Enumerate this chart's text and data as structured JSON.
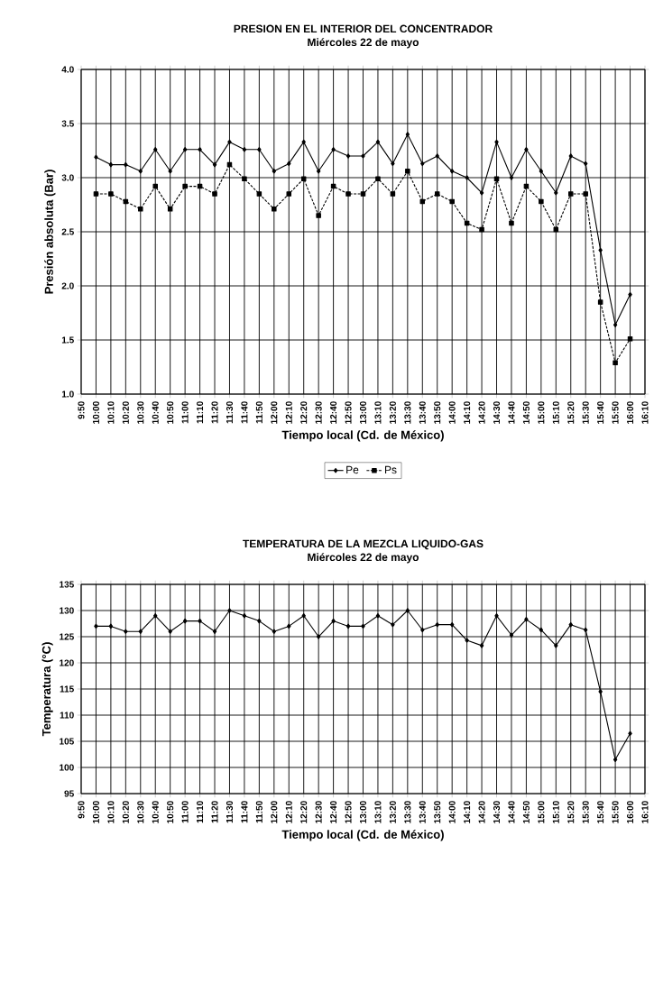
{
  "chart_data": [
    {
      "type": "line",
      "title": "PRESION EN EL INTERIOR DEL CONCENTRADOR",
      "subtitle": "Miércoles 22 de mayo",
      "xlabel": "Tiempo local (Cd. de México)",
      "ylabel": "Presión absoluta (Bar)",
      "categories": [
        "9:50",
        "10:00",
        "10:10",
        "10:20",
        "10:30",
        "10:40",
        "10:50",
        "11:00",
        "11:10",
        "11:20",
        "11:30",
        "11:40",
        "11:50",
        "12:00",
        "12:10",
        "12:20",
        "12:30",
        "12:40",
        "12:50",
        "13:00",
        "13:10",
        "13:20",
        "13:30",
        "13:40",
        "13:50",
        "14:00",
        "14:10",
        "14:20",
        "14:30",
        "14:40",
        "14:50",
        "15:00",
        "15:10",
        "15:20",
        "15:30",
        "15:40",
        "15:50",
        "16:00",
        "16:10"
      ],
      "series": [
        {
          "name": "Pe",
          "color": "#000000",
          "marker": "diamond",
          "line_style": "solid",
          "values": [
            null,
            3.19,
            3.12,
            3.12,
            3.06,
            3.26,
            3.06,
            3.26,
            3.26,
            3.12,
            3.33,
            3.26,
            3.26,
            3.06,
            3.13,
            3.33,
            3.06,
            3.26,
            3.2,
            3.2,
            3.33,
            3.13,
            3.4,
            3.13,
            3.2,
            3.06,
            3.0,
            2.86,
            3.33,
            3.0,
            3.26,
            3.06,
            2.86,
            3.2,
            3.13,
            2.33,
            1.64,
            1.92,
            null
          ]
        },
        {
          "name": "Ps",
          "color": "#000000",
          "marker": "square",
          "line_style": "dashed",
          "values": [
            null,
            2.85,
            2.85,
            2.78,
            2.71,
            2.92,
            2.71,
            2.92,
            2.92,
            2.85,
            3.12,
            2.99,
            2.85,
            2.71,
            2.85,
            2.99,
            2.65,
            2.92,
            2.85,
            2.85,
            2.99,
            2.85,
            3.06,
            2.78,
            2.85,
            2.78,
            2.58,
            2.52,
            2.99,
            2.58,
            2.92,
            2.78,
            2.52,
            2.85,
            2.85,
            1.85,
            1.29,
            1.51,
            null
          ]
        }
      ],
      "ylim": [
        1,
        4
      ],
      "yticks": [
        {
          "value": 1,
          "label": "1.0"
        },
        {
          "value": 1.5,
          "label": "1.5"
        },
        {
          "value": 2,
          "label": "2.0"
        },
        {
          "value": 2.5,
          "label": "2.5"
        },
        {
          "value": 3,
          "label": "3.0"
        },
        {
          "value": 3.5,
          "label": "3.5"
        },
        {
          "value": 4,
          "label": "4.0"
        }
      ],
      "grid": true,
      "legend": "bottom"
    },
    {
      "type": "line",
      "title": "TEMPERATURA DE LA MEZCLA LIQUIDO-GAS",
      "subtitle": "Miércoles 22 de mayo",
      "xlabel": "Tiempo local (Cd. de México)",
      "ylabel": "Temperatura (°C)",
      "categories": [
        "9:50",
        "10:00",
        "10:10",
        "10:20",
        "10:30",
        "10:40",
        "10:50",
        "11:00",
        "11:10",
        "11:20",
        "11:30",
        "11:40",
        "11:50",
        "12:00",
        "12:10",
        "12:20",
        "12:30",
        "12:40",
        "12:50",
        "13:00",
        "13:10",
        "13:20",
        "13:30",
        "13:40",
        "13:50",
        "14:00",
        "14:10",
        "14:20",
        "14:30",
        "14:40",
        "14:50",
        "15:00",
        "15:10",
        "15:20",
        "15:30",
        "15:40",
        "15:50",
        "16:00",
        "16:10"
      ],
      "series": [
        {
          "color": "#000000",
          "marker": "diamond",
          "line_style": "solid",
          "values": [
            null,
            127,
            127,
            126,
            126,
            129,
            126,
            128,
            128,
            126,
            130,
            129,
            128,
            126,
            127,
            129,
            125,
            128,
            127,
            127,
            129,
            127.3,
            130,
            126.3,
            127.3,
            127.3,
            124.3,
            123.3,
            129,
            125.3,
            128.3,
            126.3,
            123.3,
            127.3,
            126.3,
            114.5,
            101.5,
            106.5,
            null
          ]
        }
      ],
      "ylim": [
        95,
        135
      ],
      "yticks": [
        95,
        100,
        105,
        110,
        115,
        120,
        125,
        130,
        135
      ],
      "grid": true
    }
  ]
}
